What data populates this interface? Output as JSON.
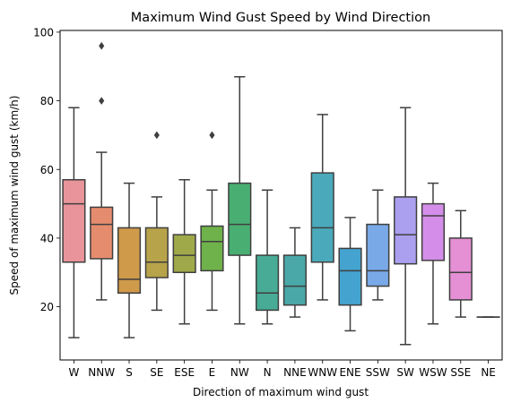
{
  "chart_data": {
    "type": "box",
    "title": "Maximum Wind Gust Speed by Wind Direction",
    "xlabel": "Direction of maximum wind gust",
    "ylabel": "Speed of maximum wind gust (km/h)",
    "ylim": [
      4.5,
      100.5
    ],
    "yticks": [
      20,
      40,
      60,
      80,
      100
    ],
    "grid": false,
    "categories": [
      "W",
      "NNW",
      "S",
      "SE",
      "ESE",
      "E",
      "NW",
      "N",
      "NNE",
      "WNW",
      "ENE",
      "SSW",
      "SW",
      "WSW",
      "SSE",
      "NE"
    ],
    "boxes": [
      {
        "whislo": 11,
        "q1": 33,
        "med": 50,
        "q3": 57,
        "whishi": 78,
        "fliers": [],
        "color": "#e9939a"
      },
      {
        "whislo": 22,
        "q1": 34,
        "med": 44,
        "q3": 49,
        "whishi": 65,
        "fliers": [
          80,
          96
        ],
        "color": "#e68c6e"
      },
      {
        "whislo": 11,
        "q1": 24,
        "med": 28,
        "q3": 43,
        "whishi": 56,
        "fliers": [],
        "color": "#cf9a4a"
      },
      {
        "whislo": 19,
        "q1": 28.5,
        "med": 33,
        "q3": 43,
        "whishi": 52,
        "fliers": [
          70
        ],
        "color": "#b7a349"
      },
      {
        "whislo": 15,
        "q1": 30,
        "med": 35,
        "q3": 41,
        "whishi": 57,
        "fliers": [],
        "color": "#a0a949"
      },
      {
        "whislo": 19,
        "q1": 30.5,
        "med": 39,
        "q3": 43.5,
        "whishi": 54,
        "fliers": [
          70
        ],
        "color": "#6fb24b"
      },
      {
        "whislo": 15,
        "q1": 35,
        "med": 44,
        "q3": 56,
        "whishi": 87,
        "fliers": [],
        "color": "#49ae72"
      },
      {
        "whislo": 15,
        "q1": 19,
        "med": 24,
        "q3": 35,
        "whishi": 54,
        "fliers": [],
        "color": "#48ab96"
      },
      {
        "whislo": 17,
        "q1": 20.5,
        "med": 26,
        "q3": 35,
        "whishi": 43,
        "fliers": [],
        "color": "#4aa9a8"
      },
      {
        "whislo": 22,
        "q1": 33,
        "med": 43,
        "q3": 59,
        "whishi": 76,
        "fliers": [],
        "color": "#4aaabb"
      },
      {
        "whislo": 13,
        "q1": 20.5,
        "med": 30.5,
        "q3": 37,
        "whishi": 46,
        "fliers": [],
        "color": "#45a4cf"
      },
      {
        "whislo": 22,
        "q1": 26,
        "med": 30.5,
        "q3": 44,
        "whishi": 54,
        "fliers": [],
        "color": "#79a9e6"
      },
      {
        "whislo": 9,
        "q1": 32.5,
        "med": 41,
        "q3": 52,
        "whishi": 78,
        "fliers": [],
        "color": "#ab9ff0"
      },
      {
        "whislo": 15,
        "q1": 33.5,
        "med": 46.5,
        "q3": 50,
        "whishi": 56,
        "fliers": [],
        "color": "#d48ee9"
      },
      {
        "whislo": 17,
        "q1": 22,
        "med": 30,
        "q3": 40,
        "whishi": 48,
        "fliers": [],
        "color": "#e58fd4"
      },
      {
        "whislo": 17,
        "q1": 17,
        "med": 17,
        "q3": 17,
        "whishi": 17,
        "fliers": [],
        "color": "#e894b8"
      }
    ]
  }
}
